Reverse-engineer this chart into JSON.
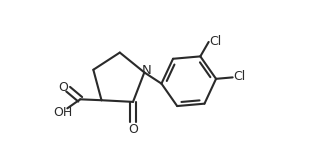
{
  "bg_color": "#ffffff",
  "line_color": "#2a2a2a",
  "line_width": 1.5,
  "font_size_atoms": 8.5,
  "figsize": [
    3.09,
    1.68
  ],
  "dpi": 100,
  "xlim": [
    0.0,
    1.0
  ],
  "ylim": [
    0.05,
    0.95
  ]
}
